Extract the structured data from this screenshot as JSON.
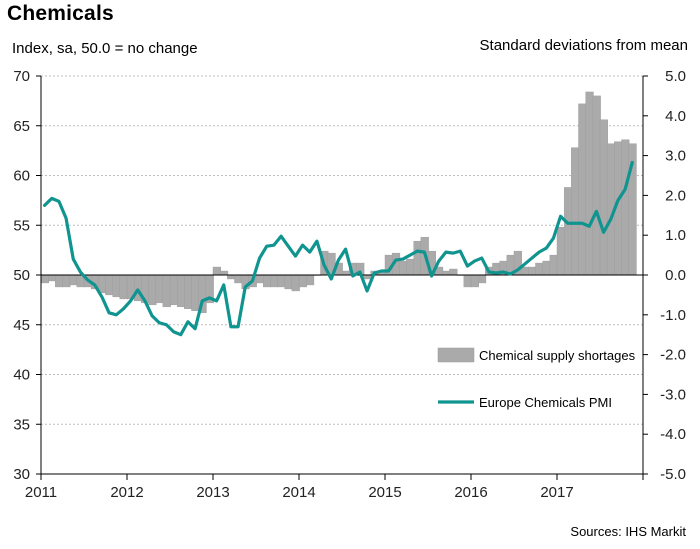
{
  "chart_data": {
    "type": "bar+line",
    "title": "Chemicals",
    "ylabel_left": "Index, sa, 50.0 = no change",
    "ylabel_right": "Standard deviations from mean",
    "source": "Sources: IHS Markit",
    "ylim_left": [
      30,
      70
    ],
    "ylim_right": [
      -5.0,
      5.0
    ],
    "yticks_left": [
      "30",
      "35",
      "40",
      "45",
      "50",
      "55",
      "60",
      "65",
      "70"
    ],
    "yticks_right": [
      "-5.0",
      "-4.0",
      "-3.0",
      "-2.0",
      "-1.0",
      "0.0",
      "1.0",
      "2.0",
      "3.0",
      "4.0",
      "5.0"
    ],
    "xticks": [
      "2011",
      "2012",
      "2013",
      "2014",
      "2015",
      "2016",
      "2017"
    ],
    "grid": true,
    "legend": [
      {
        "label": "Chemical supply shortages",
        "type": "bar",
        "color": "#aaaaaa"
      },
      {
        "label": "Europe Chemicals PMI",
        "type": "line",
        "color": "#10948f"
      }
    ],
    "x_start": "2011-01",
    "series": [
      {
        "name": "Chemical supply shortages",
        "axis": "right",
        "values": [
          -0.2,
          -0.15,
          -0.3,
          -0.3,
          -0.25,
          -0.3,
          -0.3,
          -0.35,
          -0.45,
          -0.5,
          -0.55,
          -0.6,
          -0.6,
          -0.65,
          -0.7,
          -0.75,
          -0.7,
          -0.8,
          -0.75,
          -0.8,
          -0.85,
          -0.9,
          -0.95,
          -0.7,
          0.2,
          0.1,
          -0.1,
          -0.2,
          -0.35,
          -0.3,
          -0.2,
          -0.3,
          -0.3,
          -0.3,
          -0.35,
          -0.4,
          -0.3,
          -0.25,
          0.0,
          0.6,
          0.55,
          0.3,
          0.1,
          0.3,
          0.3,
          -0.1,
          0.1,
          0.1,
          0.5,
          0.55,
          0.35,
          0.4,
          0.85,
          0.95,
          0.6,
          0.2,
          0.1,
          0.15,
          0.0,
          -0.3,
          -0.3,
          -0.2,
          0.2,
          0.3,
          0.35,
          0.5,
          0.6,
          0.2,
          0.2,
          0.3,
          0.35,
          0.5,
          1.2,
          2.2,
          3.2,
          4.3,
          4.6,
          4.5,
          3.9,
          3.3,
          3.35,
          3.4,
          3.3
        ]
      },
      {
        "name": "Europe Chemicals PMI",
        "axis": "left",
        "values": [
          57.0,
          57.7,
          57.4,
          55.7,
          51.6,
          50.3,
          49.5,
          49.0,
          47.8,
          46.2,
          46.0,
          46.6,
          47.4,
          48.5,
          47.4,
          45.9,
          45.2,
          45.0,
          44.3,
          44.0,
          45.3,
          44.6,
          47.4,
          47.7,
          47.4,
          49.0,
          44.8,
          44.8,
          48.8,
          49.4,
          51.7,
          52.9,
          53.0,
          53.9,
          52.9,
          51.9,
          53.0,
          52.3,
          53.4,
          51.0,
          49.6,
          51.5,
          52.6,
          49.9,
          50.3,
          48.4,
          50.2,
          50.4,
          50.4,
          51.5,
          51.6,
          52.0,
          52.4,
          52.3,
          49.9,
          51.4,
          52.3,
          52.2,
          52.4,
          50.9,
          51.4,
          51.7,
          50.3,
          50.2,
          50.3,
          50.1,
          50.5,
          51.1,
          51.7,
          52.3,
          52.7,
          53.7,
          55.9,
          55.2,
          55.2,
          55.2,
          54.9,
          56.4,
          54.3,
          55.6,
          57.5,
          58.6,
          61.3
        ]
      }
    ]
  }
}
